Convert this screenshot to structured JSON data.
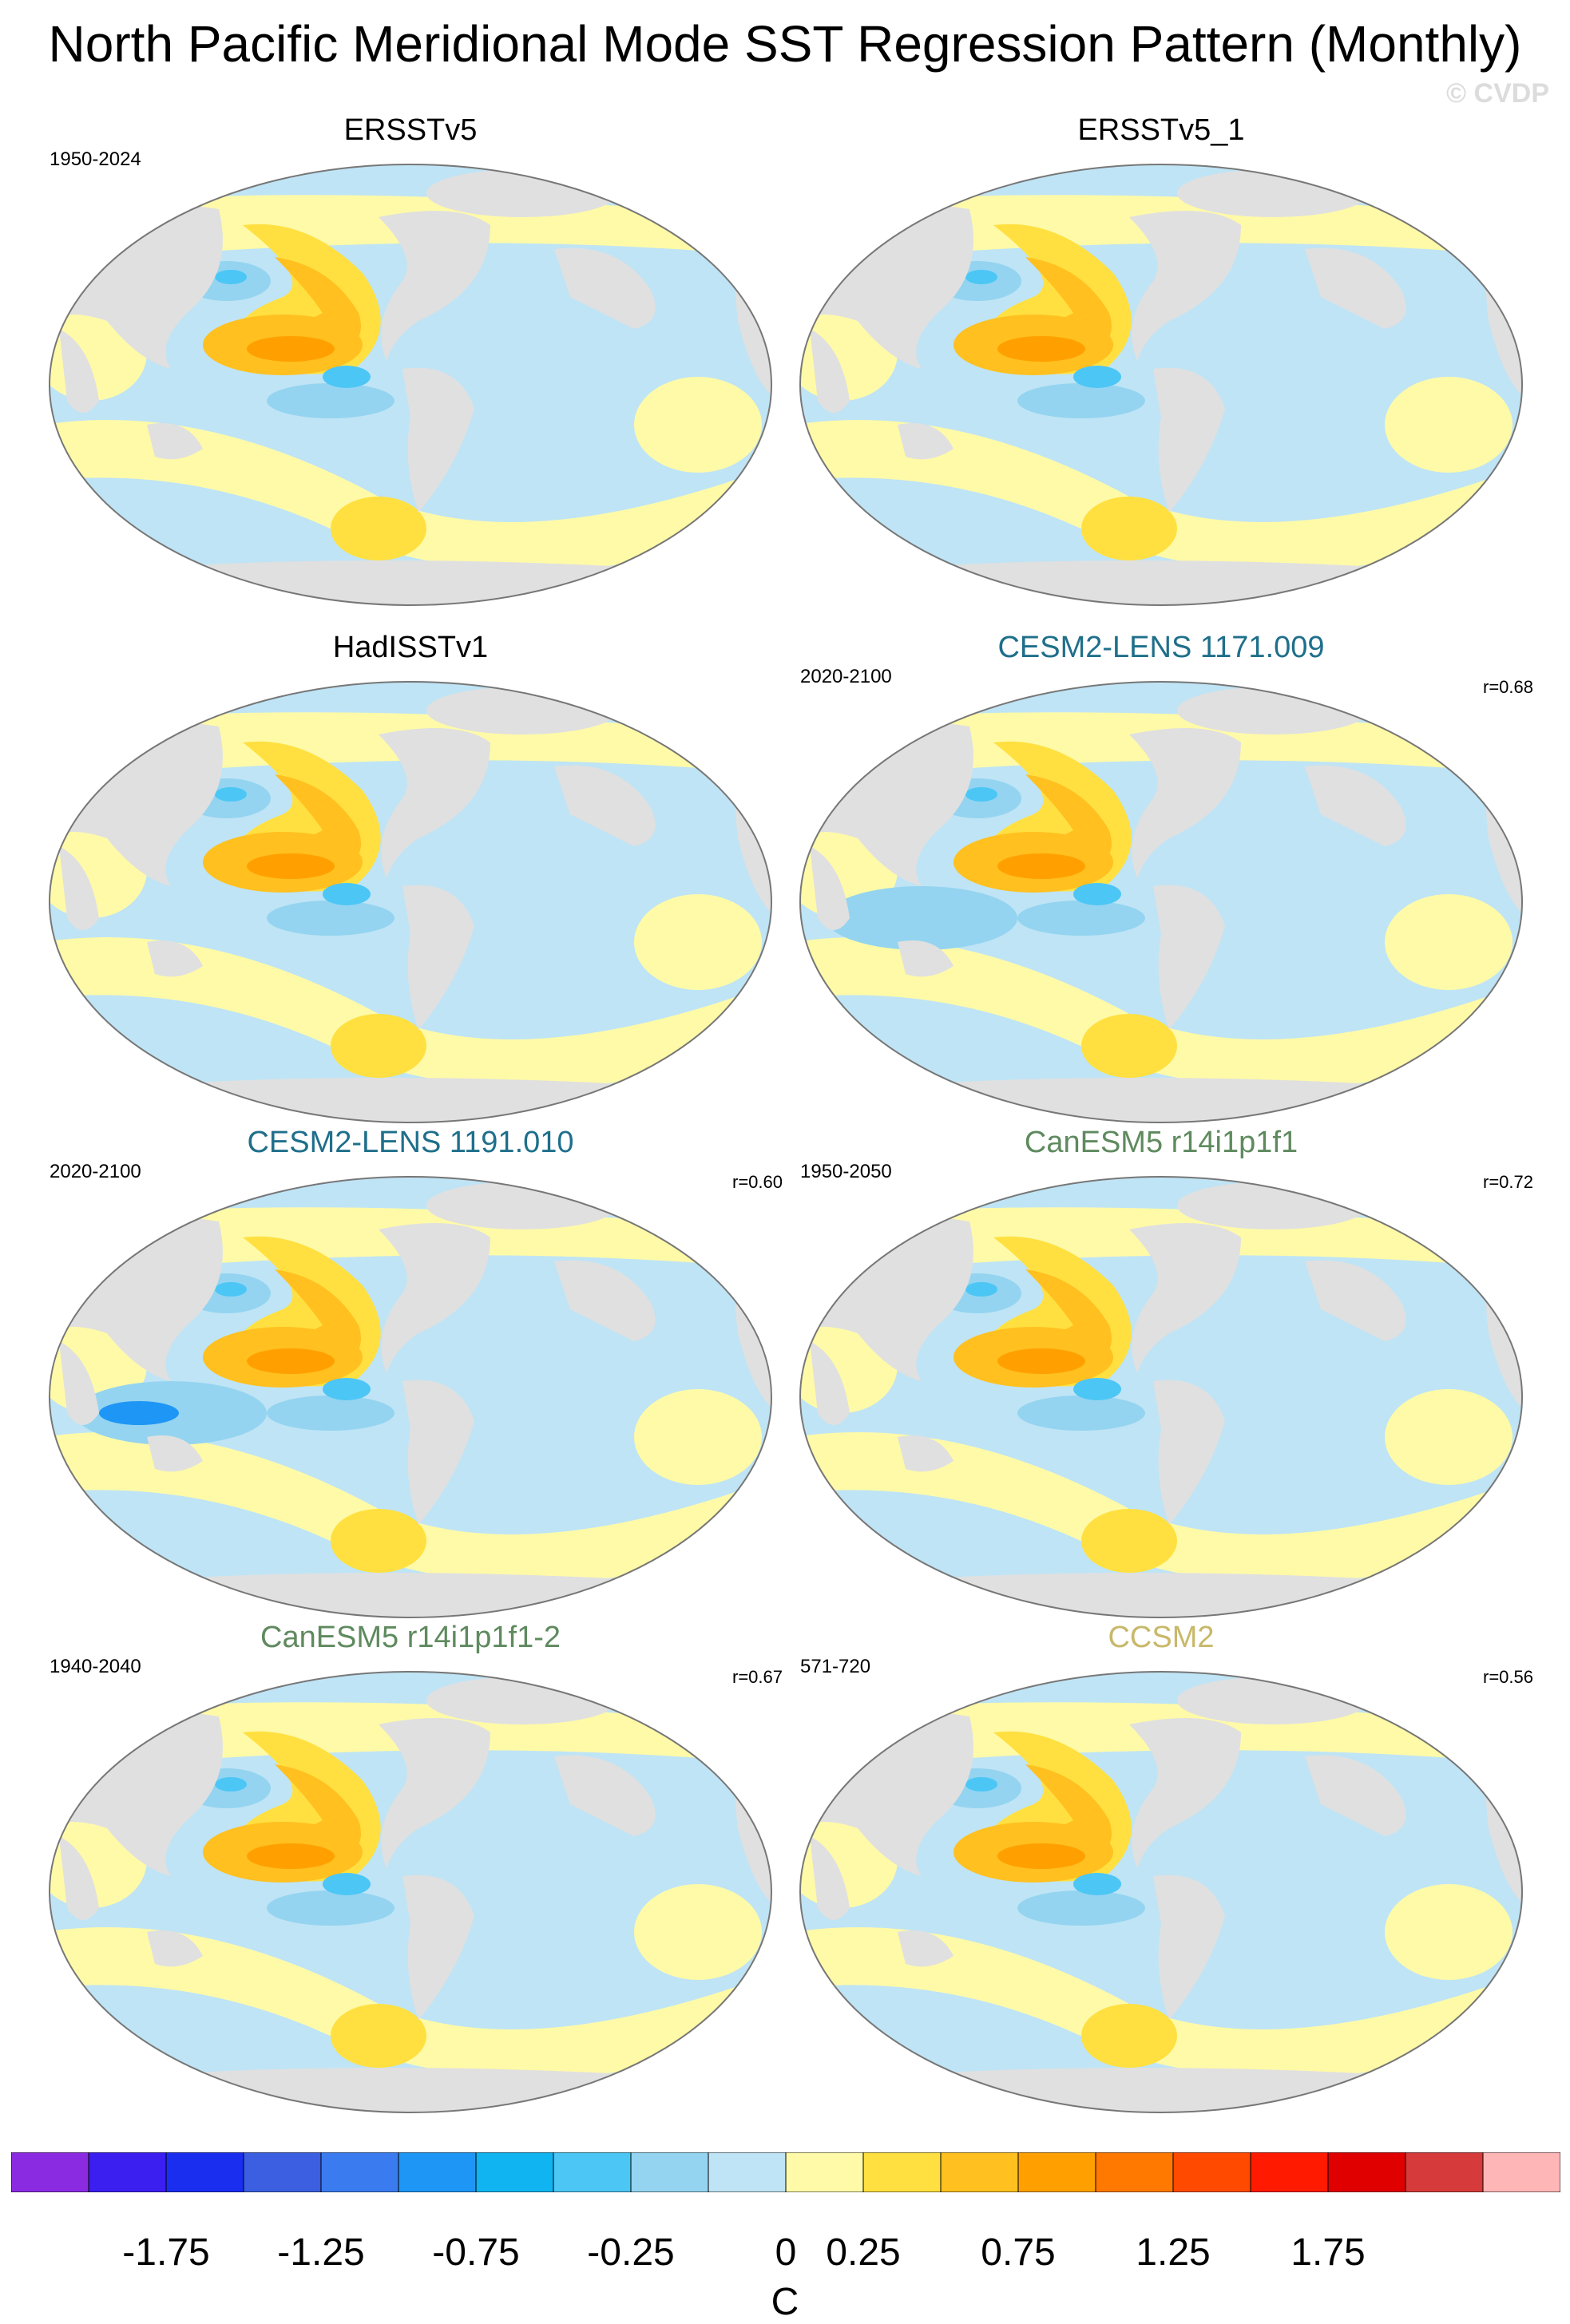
{
  "title": "North Pacific Meridional Mode SST Regression Pattern (Monthly)",
  "watermark": "© CVDP",
  "panels": [
    {
      "title": "ERSSTv5",
      "title_color": "#000000",
      "period": "1950-2024",
      "r": ""
    },
    {
      "title": "ERSSTv5_1",
      "title_color": "#000000",
      "period": "",
      "r": ""
    },
    {
      "title": "HadISSTv1",
      "title_color": "#000000",
      "period": "",
      "r": ""
    },
    {
      "title": "CESM2-LENS 1171.009",
      "title_color": "#1f6f8b",
      "period": "2020-2100",
      "r": "r=0.68"
    },
    {
      "title": "CESM2-LENS 1191.010",
      "title_color": "#1f6f8b",
      "period": "2020-2100",
      "r": "r=0.60"
    },
    {
      "title": "CanESM5 r14i1p1f1",
      "title_color": "#5f8a5f",
      "period": "1950-2050",
      "r": "r=0.72"
    },
    {
      "title": "CanESM5 r14i1p1f1-2",
      "title_color": "#5f8a5f",
      "period": "1940-2040",
      "r": "r=0.67"
    },
    {
      "title": "CCSM2",
      "title_color": "#c8b86a",
      "period": "571-720",
      "r": "r=0.56"
    }
  ],
  "colorbar": {
    "units": "C",
    "labels": [
      "-1.75",
      "-1.25",
      "-0.75",
      "-0.25",
      "0",
      "0.25",
      "0.75",
      "1.25",
      "1.75"
    ],
    "colors": [
      "#8a2be2",
      "#3b1ff0",
      "#1a2ef0",
      "#3b5fe0",
      "#3a7cf0",
      "#1e96f5",
      "#0fb4f0",
      "#4cc6f5",
      "#94d4f0",
      "#bfe4f5",
      "#fffaa8",
      "#ffe040",
      "#ffc020",
      "#ffa000",
      "#ff7800",
      "#ff4a00",
      "#ff1a00",
      "#e00000",
      "#d63a3a",
      "#ffb6b6"
    ]
  }
}
